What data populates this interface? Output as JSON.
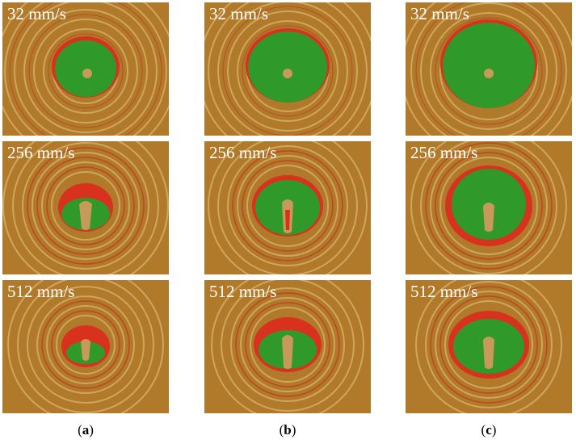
{
  "columns": [
    {
      "caption_open": "(",
      "caption_letter": "a",
      "caption_close": ")"
    },
    {
      "caption_open": "(",
      "caption_letter": "b",
      "caption_close": ")"
    },
    {
      "caption_open": "(",
      "caption_letter": "c",
      "caption_close": ")"
    }
  ],
  "rows": [
    {
      "speed_label": "32 mm/s"
    },
    {
      "speed_label": "256 mm/s"
    },
    {
      "speed_label": "512 mm/s"
    }
  ],
  "colors": {
    "background": "#b07a2a",
    "fringe_dark": "#8a5a1e",
    "fringe_light": "#d8b06a",
    "melt_green": "#2f9a2a",
    "melt_red": "#d8321e",
    "text": "#ffffff"
  }
}
